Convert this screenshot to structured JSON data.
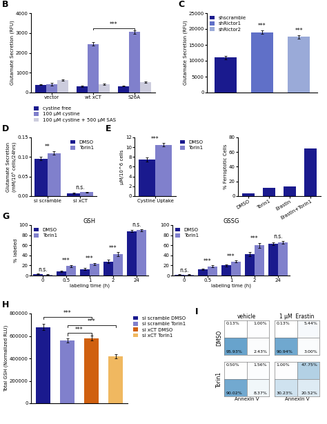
{
  "chart_data": [
    {
      "type": "bar",
      "ylabel": "Glutamate Secretion (RFU)",
      "categories": [
        "vector",
        "wt xCT",
        "S26A"
      ],
      "series": [
        {
          "name": "cystine free",
          "color": "#1a1a8e",
          "values": [
            400,
            320,
            330
          ],
          "errors": [
            30,
            25,
            25
          ]
        },
        {
          "name": "100 μM cystine",
          "color": "#8080cc",
          "values": [
            430,
            2450,
            3050
          ],
          "errors": [
            70,
            90,
            80
          ]
        },
        {
          "name": "100 μM cystine + 500 μM SAS",
          "color": "#ccccdd",
          "values": [
            620,
            420,
            510
          ],
          "errors": [
            35,
            25,
            30
          ]
        }
      ],
      "ylim": [
        0,
        4000
      ],
      "yticks": [
        0,
        1000,
        2000,
        3000,
        4000
      ],
      "legend": "below",
      "annotations": [
        {
          "text": "B"
        },
        {
          "text": "***",
          "between": [
            "wt xCT",
            "S26A"
          ]
        }
      ]
    },
    {
      "type": "bar",
      "ylabel": "Glutamate Secretion (RFU)",
      "categories": [
        "shscramble",
        "shRictor1",
        "shRictor2"
      ],
      "values": [
        11000,
        19000,
        17500
      ],
      "errors": [
        500,
        600,
        500
      ],
      "colors": [
        "#1a1a8e",
        "#6070c8",
        "#9aaad8"
      ],
      "ylim": [
        0,
        25000
      ],
      "yticks": [
        0,
        5000,
        10000,
        15000,
        20000,
        25000
      ],
      "legend": "upper left",
      "tick_labels": "y",
      "annotations": [
        {
          "text": "C"
        },
        {
          "text": "***",
          "category": "shRictor1"
        },
        {
          "text": "***",
          "category": "shRictor2"
        }
      ]
    },
    {
      "type": "bar",
      "ylabel": "Glutamate Secretion\n(mM/10⁵ cells/24hrs)",
      "categories": [
        "si scramble",
        "si xCT"
      ],
      "series": [
        {
          "name": "DMSO",
          "color": "#1a1a8e",
          "values": [
            0.096,
            0.007
          ],
          "errors": [
            0.004,
            0.001
          ]
        },
        {
          "name": "Torin1",
          "color": "#8080cc",
          "values": [
            0.11,
            0.01
          ],
          "errors": [
            0.005,
            0.001
          ]
        }
      ],
      "ylim": [
        0,
        0.15
      ],
      "yticks": [
        {
          "value": 0.0,
          "label": "0.00"
        },
        {
          "value": 0.05,
          "label": "0.05"
        },
        {
          "value": 0.1,
          "label": "0.10"
        },
        {
          "value": 0.15,
          "label": "0.15"
        }
      ],
      "legend": "upper right",
      "annotations": [
        {
          "text": "D"
        },
        {
          "text": "**",
          "category": "si scramble"
        },
        {
          "text": "n.s.",
          "category": "si xCT"
        }
      ]
    },
    {
      "type": "bar",
      "ylabel": "μM/10^6 cells",
      "categories": [
        "Cystine Uptake"
      ],
      "series": [
        {
          "name": "DMSO",
          "color": "#1a1a8e",
          "values": [
            7.5
          ],
          "errors": [
            0.4
          ]
        },
        {
          "name": "Torin1",
          "color": "#8080cc",
          "values": [
            10.5
          ],
          "errors": [
            0.3
          ]
        }
      ],
      "ylim": [
        0,
        12
      ],
      "yticks": [
        0,
        2,
        4,
        6,
        8,
        10,
        12
      ],
      "legend": "right",
      "annotations": [
        {
          "text": "E"
        },
        {
          "text": "***",
          "category": "Cystine Uptake"
        }
      ]
    },
    {
      "type": "bar",
      "title": "GSH",
      "ylabel": "% labeled",
      "xlabel": "labeling time (h)",
      "categories": [
        "0",
        "0.5",
        "1",
        "2",
        "24"
      ],
      "series": [
        {
          "name": "DMSO",
          "color": "#1a1a8e",
          "values": [
            3,
            8,
            13,
            28,
            88
          ],
          "errors": [
            0.5,
            1.0,
            1.5,
            3.0,
            2.0
          ]
        },
        {
          "name": "Torin1",
          "color": "#8080cc",
          "values": [
            2,
            19,
            23,
            42,
            90
          ],
          "errors": [
            0.5,
            2.0,
            2.0,
            4.0,
            2.0
          ]
        }
      ],
      "ylim": [
        0,
        100
      ],
      "yticks": [
        0,
        20,
        40,
        60,
        80,
        100
      ],
      "legend": "upper left",
      "annotations": [
        {
          "text": "G"
        },
        {
          "text": "n.s.",
          "category": "0"
        },
        {
          "text": "***",
          "category": "0.5"
        },
        {
          "text": "***",
          "category": "1"
        },
        {
          "text": "***",
          "category": "2"
        },
        {
          "text": "n.s.",
          "category": "24"
        }
      ]
    },
    {
      "type": "bar",
      "title": "GSSG",
      "xlabel": "labeling time (h)",
      "categories": [
        "0",
        "0.5",
        "1",
        "2",
        "24"
      ],
      "series": [
        {
          "name": "DMSO",
          "color": "#1a1a8e",
          "values": [
            2,
            12,
            20,
            42,
            63
          ],
          "errors": [
            0.5,
            1.5,
            2.0,
            4.0,
            3.0
          ]
        },
        {
          "name": "Torin1",
          "color": "#8080cc",
          "values": [
            2,
            18,
            28,
            60,
            66
          ],
          "errors": [
            0.5,
            2.0,
            2.0,
            5.0,
            3.0
          ]
        }
      ],
      "ylim": [
        0,
        100
      ],
      "yticks": [
        0,
        20,
        40,
        60,
        80,
        100
      ],
      "legend": "upper left",
      "annotations": [
        {
          "text": "n.s.",
          "category": "0"
        },
        {
          "text": "***",
          "category": "0.5"
        },
        {
          "text": "***",
          "category": "1"
        },
        {
          "text": "***",
          "category": "2"
        },
        {
          "text": "n.s.",
          "category": "24"
        }
      ]
    },
    {
      "type": "bar",
      "ylabel": "Total GSH (Normalized RLU)",
      "categories": [
        "si scramble DMSO",
        "si scramble Torin1",
        "si xCT DMSO",
        "si xCT Torin1"
      ],
      "values": [
        680000,
        560000,
        580000,
        420000
      ],
      "errors": [
        25000,
        20000,
        22000,
        18000
      ],
      "colors": [
        "#1a1a8e",
        "#8080cc",
        "#d06010",
        "#f0b860"
      ],
      "ylim": [
        0,
        800000
      ],
      "yticks": [
        0,
        200000,
        400000,
        600000,
        800000
      ],
      "legend": "right",
      "tick_labels": "y",
      "annotations": [
        {
          "text": "H"
        },
        {
          "text": "***",
          "between": [
            "si scramble DMSO",
            "si xCT DMSO"
          ]
        },
        {
          "text": "***",
          "between": [
            "si scramble Torin1",
            "si xCT Torin1"
          ]
        },
        {
          "text": "***",
          "between": [
            "si scramble Torin1",
            "si xCT DMSO"
          ]
        }
      ]
    },
    {
      "type": "quadrant",
      "columns": [
        "vehicle",
        "1 μM  Erastin"
      ],
      "rows": [
        "DMSO",
        "Torin1"
      ],
      "xlabel": "Annexin V",
      "cells": [
        [
          {
            "values": [
              [
                0.13,
                1.0
              ],
              [
                95.93,
                2.43
              ]
            ],
            "value_labels": [
              [
                "0.13%",
                "1.00%"
              ],
              [
                "95.93%",
                "2.43%"
              ]
            ]
          },
          {
            "values": [
              [
                0.13,
                5.44
              ],
              [
                90.94,
                3.0
              ]
            ],
            "value_labels": [
              [
                "0.13%",
                "5.44%"
              ],
              [
                "90.94%",
                "3.00%"
              ]
            ]
          }
        ],
        [
          {
            "values": [
              [
                0.5,
                1.56
              ],
              [
                90.02,
                8.37
              ]
            ],
            "value_labels": [
              [
                "0.50%",
                "1.56%"
              ],
              [
                "90.02%",
                "8.37%"
              ]
            ]
          },
          {
            "values": [
              [
                1.0,
                47.75
              ],
              [
                30.23,
                20.52
              ]
            ],
            "value_labels": [
              [
                "1.00%",
                "47.75%"
              ],
              [
                "30.23%",
                "20.52%"
              ]
            ]
          }
        ]
      ],
      "annotations": [
        {
          "text": "I"
        }
      ]
    },
    {
      "type": "bar",
      "ylabel": "% Ferroptotic Cells",
      "categories": [
        "DMSO",
        "Torin1",
        "Erastin",
        "Erastin+Torin1"
      ],
      "values": [
        4,
        11,
        13,
        65
      ],
      "color": "#1a1a8e",
      "ylim": [
        0,
        80
      ],
      "yticks": [
        0,
        20,
        40,
        60,
        80
      ]
    }
  ]
}
